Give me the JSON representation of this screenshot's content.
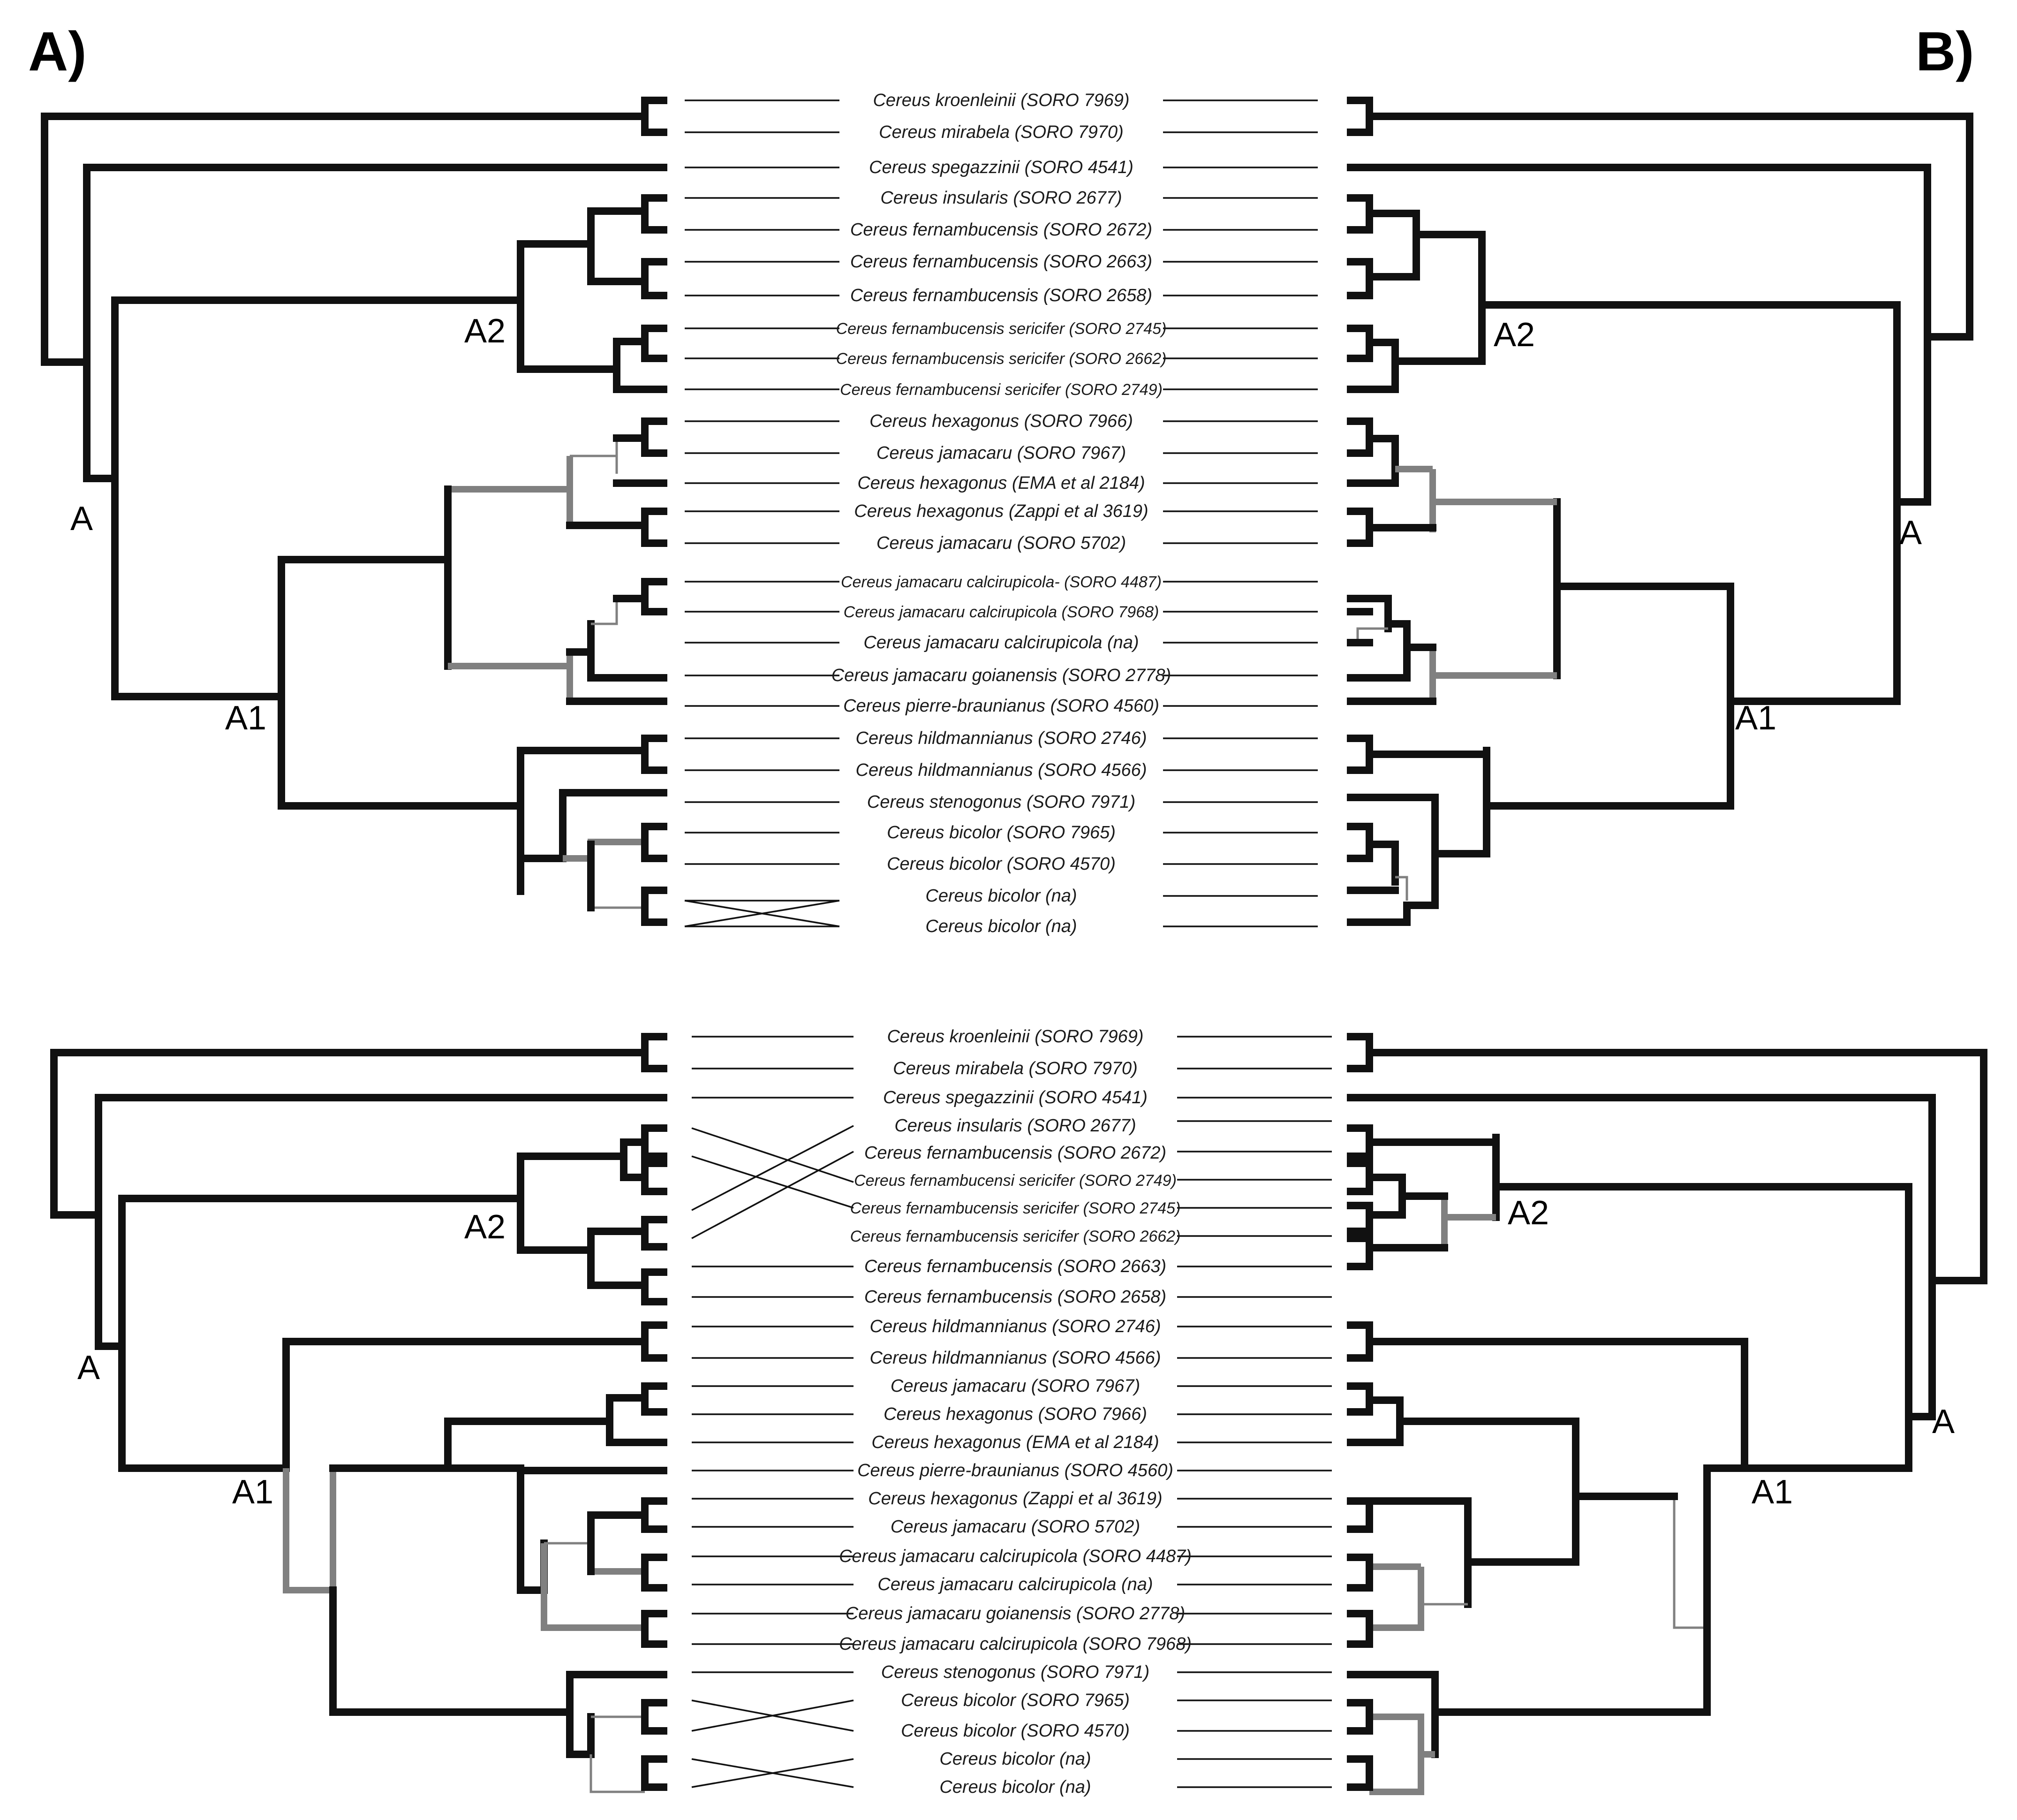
{
  "figure": {
    "panel_left": "A)",
    "panel_right": "B)"
  },
  "tanglegram_top": {
    "taxa": [
      "Cereus kroenleinii (SORO 7969)",
      "Cereus mirabela (SORO 7970)",
      "Cereus spegazzinii (SORO 4541)",
      "Cereus insularis (SORO 2677)",
      "Cereus fernambucensis (SORO 2672)",
      "Cereus fernambucensis (SORO 2663)",
      "Cereus fernambucensis (SORO 2658)",
      "Cereus fernambucensis sericifer (SORO 2745)",
      "Cereus fernambucensis sericifer (SORO 2662)",
      "Cereus fernambucensi sericifer (SORO 2749)",
      "Cereus hexagonus (SORO 7966)",
      "Cereus  jamacaru (SORO 7967)",
      "Cereus hexagonus (EMA et al 2184)",
      "Cereus hexagonus (Zappi et al 3619)",
      "Cereus jamacaru (SORO 5702)",
      "Cereus jamacaru calcirupicola- (SORO 4487)",
      "Cereus jamacaru calcirupicola (SORO 7968)",
      "Cereus jamacaru calcirupicola (na)",
      "Cereus jamacaru goianensis (SORO 2778)",
      "Cereus pierre-braunianus (SORO 4560)",
      "Cereus hildmannianus (SORO 2746)",
      "Cereus hildmannianus (SORO 4566)",
      "Cereus stenogonus (SORO 7971)",
      "Cereus bicolor (SORO 7965)",
      "Cereus bicolor (SORO 4570)",
      "Cereus bicolor (na)",
      "Cereus bicolor (na)"
    ],
    "left_clade_labels": {
      "A": "A",
      "A1": "A1",
      "A2": "A2"
    },
    "right_clade_labels": {
      "A": "A",
      "A1": "A1",
      "A2": "A2"
    }
  },
  "tanglegram_bottom": {
    "taxa": [
      "Cereus kroenleinii (SORO 7969)",
      "Cereus mirabela (SORO 7970)",
      "Cereus spegazzinii (SORO 4541)",
      "Cereus insularis (SORO 2677)",
      "Cereus fernambucensis (SORO 2672)",
      "Cereus fernambucensi sericifer (SORO 2749)",
      "Cereus fernambucensis sericifer (SORO 2745)",
      "Cereus fernambucensis sericifer (SORO 2662)",
      "Cereus fernambucensis (SORO 2663)",
      "Cereus fernambucensis (SORO 2658)",
      "Cereus hildmannianus (SORO 2746)",
      "Cereus hildmannianus (SORO 4566)",
      "Cereus  jamacaru (SORO 7967)",
      "Cereus hexagonus (SORO 7966)",
      "Cereus hexagonus (EMA et al 2184)",
      "Cereus pierre-braunianus (SORO 4560)",
      "Cereus hexagonus (Zappi et al 3619)",
      "Cereus jamacaru (SORO 5702)",
      "Cereus jamacaru calcirupicola (SORO 4487)",
      "Cereus jamacaru calcirupicola (na)",
      "Cereus jamacaru goianensis (SORO 2778)",
      "Cereus jamacaru calcirupicola (SORO 7968)",
      "Cereus stenogonus (SORO 7971)",
      "Cereus bicolor (SORO 7965)",
      "Cereus bicolor (SORO 4570)",
      "Cereus bicolor (na)",
      "Cereus bicolor (na)"
    ],
    "left_clade_labels": {
      "A": "A",
      "A1": "A1",
      "A2": "A2"
    },
    "right_clade_labels": {
      "A": "A",
      "A1": "A1",
      "A2": "A2"
    }
  }
}
